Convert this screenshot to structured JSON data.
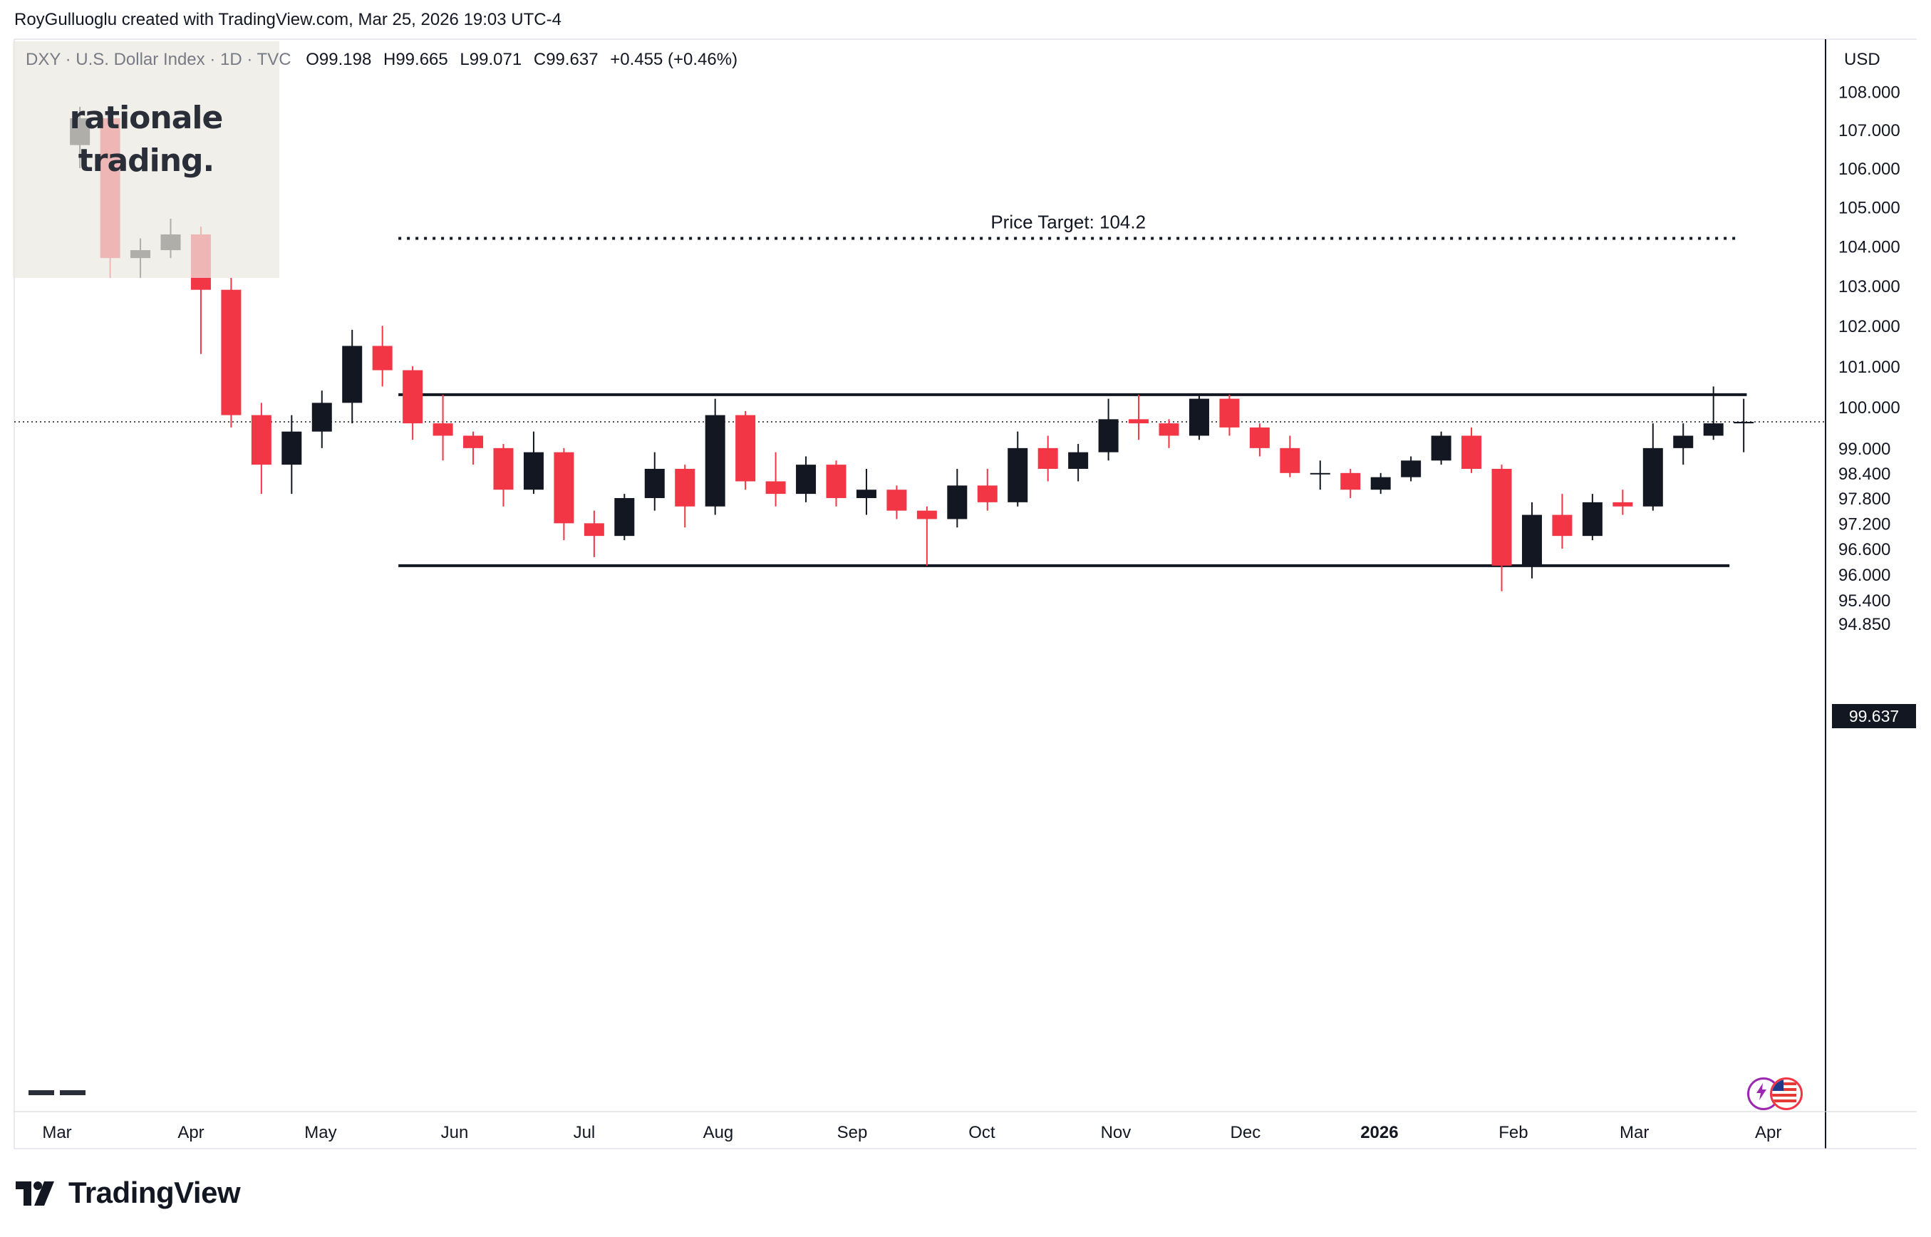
{
  "header": {
    "attribution": "RoyGulluoglu created with TradingView.com, Mar 25, 2026 19:03 UTC-4"
  },
  "legend": {
    "symbol": "DXY · U.S. Dollar Index · 1D · TVC",
    "open_label": "O",
    "open": "99.198",
    "high_label": "H",
    "high": "99.665",
    "low_label": "L",
    "low": "99.071",
    "close_label": "C",
    "close": "99.637",
    "change": "+0.455 (+0.46%)"
  },
  "watermark": {
    "line1": "rationale",
    "line2": "trading."
  },
  "axis": {
    "currency": "USD",
    "last_price": "99.637"
  },
  "footer": {
    "brand": "TradingView"
  },
  "icons": {
    "brand_logo": "tradingview-logo-icon",
    "badge1": "lightning-icon",
    "badge2": "us-flag-icon"
  },
  "colors": {
    "up": "#131722",
    "down": "#f23645",
    "line": "#131722",
    "grid_axis": "#d1d4dc"
  },
  "chart_data": {
    "type": "candlestick",
    "symbol": "DXY",
    "timeframe": "1D",
    "y_axis": {
      "ticks": [
        "108.000",
        "107.000",
        "106.000",
        "105.000",
        "104.000",
        "103.000",
        "102.000",
        "101.000",
        "100.000",
        "99.000",
        "98.400",
        "97.800",
        "97.200",
        "96.600",
        "96.000",
        "95.400",
        "94.850"
      ],
      "scale": "log"
    },
    "x_axis": {
      "ticks": [
        {
          "label": "Mar",
          "bold": false
        },
        {
          "label": "Apr",
          "bold": false
        },
        {
          "label": "May",
          "bold": false
        },
        {
          "label": "Jun",
          "bold": false
        },
        {
          "label": "Jul",
          "bold": false
        },
        {
          "label": "Aug",
          "bold": false
        },
        {
          "label": "Sep",
          "bold": false
        },
        {
          "label": "Oct",
          "bold": false
        },
        {
          "label": "Nov",
          "bold": false
        },
        {
          "label": "Dec",
          "bold": false
        },
        {
          "label": "2026",
          "bold": true
        },
        {
          "label": "Feb",
          "bold": false
        },
        {
          "label": "Mar",
          "bold": false
        },
        {
          "label": "Apr",
          "bold": false
        }
      ]
    },
    "candles_weekly_approx": [
      {
        "x": "2025-03-03",
        "o": 106.6,
        "h": 107.6,
        "l": 106.0,
        "c": 107.3
      },
      {
        "x": "2025-03-10",
        "o": 107.3,
        "h": 107.5,
        "l": 103.2,
        "c": 103.7
      },
      {
        "x": "2025-03-17",
        "o": 103.7,
        "h": 104.2,
        "l": 103.2,
        "c": 103.9
      },
      {
        "x": "2025-03-24",
        "o": 103.9,
        "h": 104.7,
        "l": 103.7,
        "c": 104.3
      },
      {
        "x": "2025-03-31",
        "o": 104.3,
        "h": 104.5,
        "l": 101.3,
        "c": 102.9
      },
      {
        "x": "2025-04-07",
        "o": 102.9,
        "h": 103.2,
        "l": 99.5,
        "c": 99.8
      },
      {
        "x": "2025-04-14",
        "o": 99.8,
        "h": 100.1,
        "l": 97.9,
        "c": 98.6
      },
      {
        "x": "2025-04-21",
        "o": 98.6,
        "h": 99.8,
        "l": 97.9,
        "c": 99.4
      },
      {
        "x": "2025-04-28",
        "o": 99.4,
        "h": 100.4,
        "l": 99.0,
        "c": 100.1
      },
      {
        "x": "2025-05-05",
        "o": 100.1,
        "h": 101.9,
        "l": 99.6,
        "c": 101.5
      },
      {
        "x": "2025-05-12",
        "o": 101.5,
        "h": 102.0,
        "l": 100.5,
        "c": 100.9
      },
      {
        "x": "2025-05-19",
        "o": 100.9,
        "h": 101.0,
        "l": 99.2,
        "c": 99.6
      },
      {
        "x": "2025-05-26",
        "o": 99.6,
        "h": 100.3,
        "l": 98.7,
        "c": 99.3
      },
      {
        "x": "2025-06-02",
        "o": 99.3,
        "h": 99.4,
        "l": 98.6,
        "c": 99.0
      },
      {
        "x": "2025-06-09",
        "o": 99.0,
        "h": 99.1,
        "l": 97.6,
        "c": 98.0
      },
      {
        "x": "2025-06-16",
        "o": 98.0,
        "h": 99.4,
        "l": 97.9,
        "c": 98.9
      },
      {
        "x": "2025-06-23",
        "o": 98.9,
        "h": 99.0,
        "l": 96.8,
        "c": 97.2
      },
      {
        "x": "2025-06-30",
        "o": 97.2,
        "h": 97.5,
        "l": 96.4,
        "c": 96.9
      },
      {
        "x": "2025-07-07",
        "o": 96.9,
        "h": 97.9,
        "l": 96.8,
        "c": 97.8
      },
      {
        "x": "2025-07-14",
        "o": 97.8,
        "h": 98.9,
        "l": 97.5,
        "c": 98.5
      },
      {
        "x": "2025-07-21",
        "o": 98.5,
        "h": 98.6,
        "l": 97.1,
        "c": 97.6
      },
      {
        "x": "2025-07-28",
        "o": 97.6,
        "h": 100.2,
        "l": 97.4,
        "c": 99.8
      },
      {
        "x": "2025-08-04",
        "o": 99.8,
        "h": 99.9,
        "l": 98.0,
        "c": 98.2
      },
      {
        "x": "2025-08-11",
        "o": 98.2,
        "h": 98.9,
        "l": 97.6,
        "c": 97.9
      },
      {
        "x": "2025-08-18",
        "o": 97.9,
        "h": 98.8,
        "l": 97.7,
        "c": 98.6
      },
      {
        "x": "2025-08-25",
        "o": 98.6,
        "h": 98.7,
        "l": 97.6,
        "c": 97.8
      },
      {
        "x": "2025-09-01",
        "o": 97.8,
        "h": 98.5,
        "l": 97.4,
        "c": 98.0
      },
      {
        "x": "2025-09-08",
        "o": 98.0,
        "h": 98.1,
        "l": 97.3,
        "c": 97.5
      },
      {
        "x": "2025-09-15",
        "o": 97.5,
        "h": 97.6,
        "l": 96.2,
        "c": 97.3
      },
      {
        "x": "2025-09-22",
        "o": 97.3,
        "h": 98.5,
        "l": 97.1,
        "c": 98.1
      },
      {
        "x": "2025-09-29",
        "o": 98.1,
        "h": 98.5,
        "l": 97.5,
        "c": 97.7
      },
      {
        "x": "2025-10-06",
        "o": 97.7,
        "h": 99.4,
        "l": 97.6,
        "c": 99.0
      },
      {
        "x": "2025-10-13",
        "o": 99.0,
        "h": 99.3,
        "l": 98.2,
        "c": 98.5
      },
      {
        "x": "2025-10-20",
        "o": 98.5,
        "h": 99.1,
        "l": 98.2,
        "c": 98.9
      },
      {
        "x": "2025-10-27",
        "o": 98.9,
        "h": 100.2,
        "l": 98.7,
        "c": 99.7
      },
      {
        "x": "2025-11-03",
        "o": 99.7,
        "h": 100.3,
        "l": 99.2,
        "c": 99.6
      },
      {
        "x": "2025-11-10",
        "o": 99.6,
        "h": 99.7,
        "l": 99.0,
        "c": 99.3
      },
      {
        "x": "2025-11-17",
        "o": 99.3,
        "h": 100.3,
        "l": 99.2,
        "c": 100.2
      },
      {
        "x": "2025-11-24",
        "o": 100.2,
        "h": 100.3,
        "l": 99.3,
        "c": 99.5
      },
      {
        "x": "2025-12-01",
        "o": 99.5,
        "h": 99.6,
        "l": 98.8,
        "c": 99.0
      },
      {
        "x": "2025-12-08",
        "o": 99.0,
        "h": 99.3,
        "l": 98.3,
        "c": 98.4
      },
      {
        "x": "2025-12-15",
        "o": 98.4,
        "h": 98.7,
        "l": 98.0,
        "c": 98.4
      },
      {
        "x": "2025-12-22",
        "o": 98.4,
        "h": 98.5,
        "l": 97.8,
        "c": 98.0
      },
      {
        "x": "2025-12-29",
        "o": 98.0,
        "h": 98.4,
        "l": 97.9,
        "c": 98.3
      },
      {
        "x": "2026-01-05",
        "o": 98.3,
        "h": 98.8,
        "l": 98.2,
        "c": 98.7
      },
      {
        "x": "2026-01-12",
        "o": 98.7,
        "h": 99.4,
        "l": 98.6,
        "c": 99.3
      },
      {
        "x": "2026-01-19",
        "o": 99.3,
        "h": 99.5,
        "l": 98.4,
        "c": 98.5
      },
      {
        "x": "2026-01-26",
        "o": 98.5,
        "h": 98.6,
        "l": 95.6,
        "c": 96.2
      },
      {
        "x": "2026-02-02",
        "o": 96.2,
        "h": 97.7,
        "l": 95.9,
        "c": 97.4
      },
      {
        "x": "2026-02-09",
        "o": 97.4,
        "h": 97.9,
        "l": 96.6,
        "c": 96.9
      },
      {
        "x": "2026-02-16",
        "o": 96.9,
        "h": 97.9,
        "l": 96.8,
        "c": 97.7
      },
      {
        "x": "2026-02-23",
        "o": 97.7,
        "h": 98.0,
        "l": 97.4,
        "c": 97.6
      },
      {
        "x": "2026-03-02",
        "o": 97.6,
        "h": 99.6,
        "l": 97.5,
        "c": 99.0
      },
      {
        "x": "2026-03-09",
        "o": 99.0,
        "h": 99.6,
        "l": 98.6,
        "c": 99.3
      },
      {
        "x": "2026-03-16",
        "o": 99.3,
        "h": 100.5,
        "l": 99.2,
        "c": 99.6
      },
      {
        "x": "2026-03-23",
        "o": 99.6,
        "h": 100.2,
        "l": 98.9,
        "c": 99.637
      }
    ],
    "drawings": [
      {
        "type": "horizontal-line",
        "name": "resistance",
        "value": 100.3,
        "from": "2025-05-19",
        "to": "2026-03-27"
      },
      {
        "type": "horizontal-line",
        "name": "support",
        "value": 96.2,
        "from": "2025-05-19",
        "to": "2026-03-23"
      },
      {
        "type": "horizontal-line",
        "name": "price-target",
        "value": 104.2,
        "style": "dotted",
        "label": "Price Target: 104.2",
        "from": "2025-05-19",
        "to": "2026-03-25"
      },
      {
        "type": "horizontal-line",
        "name": "last-price-line",
        "value": 99.637,
        "style": "dotted"
      }
    ],
    "grid": false,
    "legend": "top-left"
  }
}
